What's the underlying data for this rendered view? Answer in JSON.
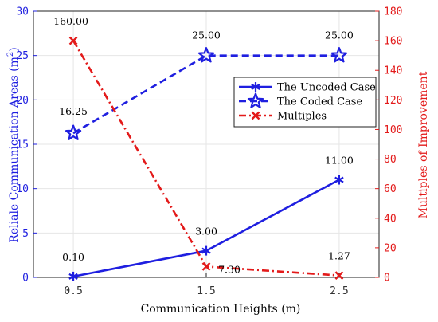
{
  "chart_data": {
    "type": "line",
    "x": [
      0.5,
      1.5,
      2.5
    ],
    "x_tick_labels": [
      "0.5",
      "1.5",
      "2.5"
    ],
    "xlabel": "Communication Heights (m)",
    "xlim": [
      0.2,
      2.8
    ],
    "ylabel_left": "Reliale Communication Areas (m",
    "ylabel_left_superscript": "2",
    "ylabel_left_suffix": ")",
    "ylim_left": [
      0,
      30
    ],
    "ytick_labels_left": [
      "0",
      "5",
      "10",
      "15",
      "20",
      "25",
      "30"
    ],
    "ylabel_right": "Multiples of Improvement",
    "ylim_right": [
      0,
      180
    ],
    "ytick_labels_right": [
      "0",
      "20",
      "40",
      "60",
      "80",
      "100",
      "120",
      "140",
      "160",
      "180"
    ],
    "grid": true,
    "legend_position": "upper-right",
    "series": [
      {
        "name": "The Uncoded Case",
        "axis": "left",
        "values": [
          0.1,
          3.0,
          11.0
        ],
        "labels": [
          "0.10",
          "3.00",
          "11.00"
        ],
        "color": "#1f1fe0",
        "line_style": "solid",
        "marker": "asterisk"
      },
      {
        "name": "The Coded Case",
        "axis": "left",
        "values": [
          16.25,
          25.0,
          25.0
        ],
        "labels": [
          "16.25",
          "25.00",
          "25.00"
        ],
        "color": "#1f1fe0",
        "line_style": "dashed",
        "marker": "star"
      },
      {
        "name": "Multiples",
        "axis": "right",
        "values": [
          160.0,
          7.3,
          1.27
        ],
        "labels": [
          "160.00",
          "7.30",
          "1.27"
        ],
        "color": "#e31a1a",
        "line_style": "dashdot",
        "marker": "x"
      }
    ]
  }
}
